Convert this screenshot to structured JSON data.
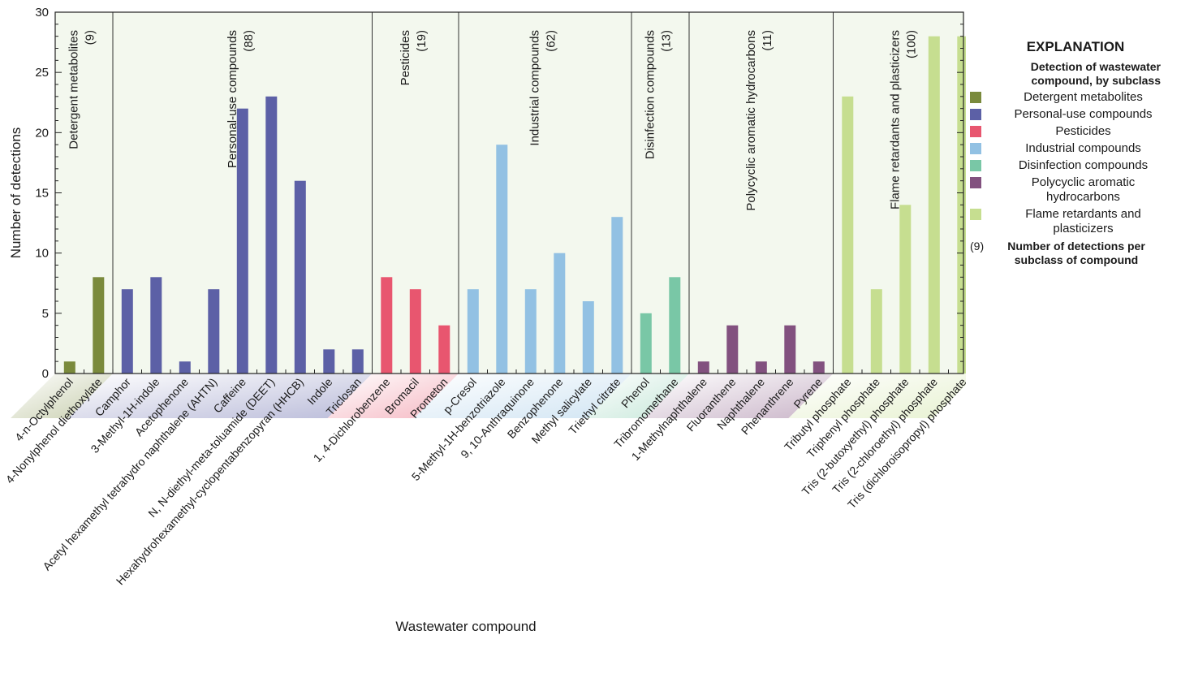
{
  "chart_data": {
    "type": "bar",
    "xlabel": "Wastewater compound",
    "ylabel": "Number of detections",
    "ylim": [
      0,
      30
    ],
    "yticks": [
      0,
      5,
      10,
      15,
      20,
      25,
      30
    ],
    "grid": false,
    "background": "#f3f8ee",
    "groups": [
      {
        "name": "Detergent metabolites",
        "count_label": "(9)",
        "color": "#7a8a3c",
        "items": [
          {
            "label": "4-n-Octylphenol",
            "value": 1
          },
          {
            "label": "4-Nonylphenol diethoxylate",
            "value": 8
          }
        ]
      },
      {
        "name": "Personal-use compounds",
        "count_label": "(88)",
        "color": "#5c60a6",
        "items": [
          {
            "label": "Camphor",
            "value": 7
          },
          {
            "label": "3-Methyl-1H-indole",
            "value": 8
          },
          {
            "label": "Acetophenone",
            "value": 1
          },
          {
            "label": "Acetyl hexamethyl tetrahydro naphthalene (AHTN)",
            "value": 7
          },
          {
            "label": "Caffeine",
            "value": 22
          },
          {
            "label": "N, N-diethyl-meta-toluamide (DEET)",
            "value": 23
          },
          {
            "label": "Hexahydrohexamethyl-cyclopentabenzopyran (HHCB)",
            "value": 16
          },
          {
            "label": "Indole",
            "value": 2
          },
          {
            "label": "Triclosan",
            "value": 2
          }
        ]
      },
      {
        "name": "Pesticides",
        "count_label": "(19)",
        "color": "#e8566f",
        "items": [
          {
            "label": "1, 4-Dichlorobenzene",
            "value": 8
          },
          {
            "label": "Bromacil",
            "value": 7
          },
          {
            "label": "Prometon",
            "value": 4
          }
        ]
      },
      {
        "name": "Industrial compounds",
        "count_label": "(62)",
        "color": "#92c1e3",
        "items": [
          {
            "label": "p-Cresol",
            "value": 7
          },
          {
            "label": "5-Methyl-1H-benzotriazole",
            "value": 19
          },
          {
            "label": "9, 10-Anthraquinone",
            "value": 7
          },
          {
            "label": "Benzophenone",
            "value": 10
          },
          {
            "label": "Methyl salicylate",
            "value": 6
          },
          {
            "label": "Triethyl citrate",
            "value": 13
          }
        ]
      },
      {
        "name": "Disinfection compounds",
        "count_label": "(13)",
        "color": "#79c7a6",
        "items": [
          {
            "label": "Phenol",
            "value": 5
          },
          {
            "label": "Tribromomethane",
            "value": 8
          }
        ]
      },
      {
        "name": "Polycyclic aromatic hydrocarbons",
        "count_label": "(11)",
        "color": "#82517f",
        "items": [
          {
            "label": "1-Methylnaphthalene",
            "value": 1
          },
          {
            "label": "Fluoranthene",
            "value": 4
          },
          {
            "label": "Naphthalene",
            "value": 1
          },
          {
            "label": "Phenanthrene",
            "value": 4
          },
          {
            "label": "Pyrene",
            "value": 1
          }
        ]
      },
      {
        "name": "Flame retardants and plasticizers",
        "count_label": "(100)",
        "color": "#c6de90",
        "items": [
          {
            "label": "Tributyl phosphate",
            "value": 23
          },
          {
            "label": "Triphenyl phosphate",
            "value": 7
          },
          {
            "label": "Tris (2-butoxyethyl) phosphate",
            "value": 14
          },
          {
            "label": "Tris (2-chloroethyl) phosphate",
            "value": 28
          },
          {
            "label": "Tris (dichloroisopropyl) phosphate",
            "value": 28
          }
        ]
      }
    ]
  },
  "legend": {
    "title": "EXPLANATION",
    "subtitle": "Detection of wastewater compound, by subclass",
    "items": [
      {
        "label": "Detergent metabolites",
        "color": "#7a8a3c"
      },
      {
        "label": "Personal-use compounds",
        "color": "#5c60a6"
      },
      {
        "label": "Pesticides",
        "color": "#e8566f"
      },
      {
        "label": "Industrial compounds",
        "color": "#92c1e3"
      },
      {
        "label": "Disinfection compounds",
        "color": "#79c7a6"
      },
      {
        "label": "Polycyclic aromatic hydrocarbons",
        "color": "#82517f"
      },
      {
        "label": "Flame retardants and plasticizers",
        "color": "#c6de90"
      }
    ],
    "note_symbol": "(9)",
    "note_text": "Number of detections per subclass of compound"
  }
}
